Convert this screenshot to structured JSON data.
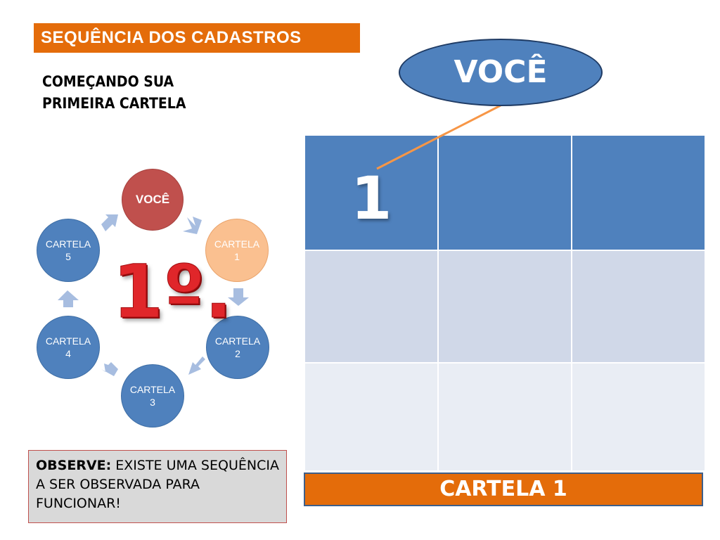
{
  "header": {
    "title": "SEQUÊNCIA  DOS CADASTROS"
  },
  "subtitle": {
    "line1": "COMEÇANDO SUA",
    "line2": "PRIMEIRA CARTELA"
  },
  "cycle": {
    "center_label": "1º.",
    "nodes": [
      {
        "line1": "VOCÊ",
        "line2": ""
      },
      {
        "line1": "CARTELA",
        "line2": "1"
      },
      {
        "line1": "CARTELA",
        "line2": "2"
      },
      {
        "line1": "CARTELA",
        "line2": "3"
      },
      {
        "line1": "CARTELA",
        "line2": "4"
      },
      {
        "line1": "CARTELA",
        "line2": "5"
      }
    ]
  },
  "observe": {
    "label": "OBSERVE:",
    "text": " EXISTE UMA SEQUÊNCIA A SER OBSERVADA PARA FUNCIONAR!"
  },
  "callout": {
    "label": "VOCÊ"
  },
  "grid": {
    "first_cell": "1"
  },
  "footer": {
    "label": "CARTELA  1"
  },
  "colors": {
    "orange": "#e46c0a",
    "blue": "#4f81bd",
    "red": "#c0504d",
    "peach": "#fac090",
    "arrow": "#a7bde0",
    "connector": "#f79646"
  }
}
